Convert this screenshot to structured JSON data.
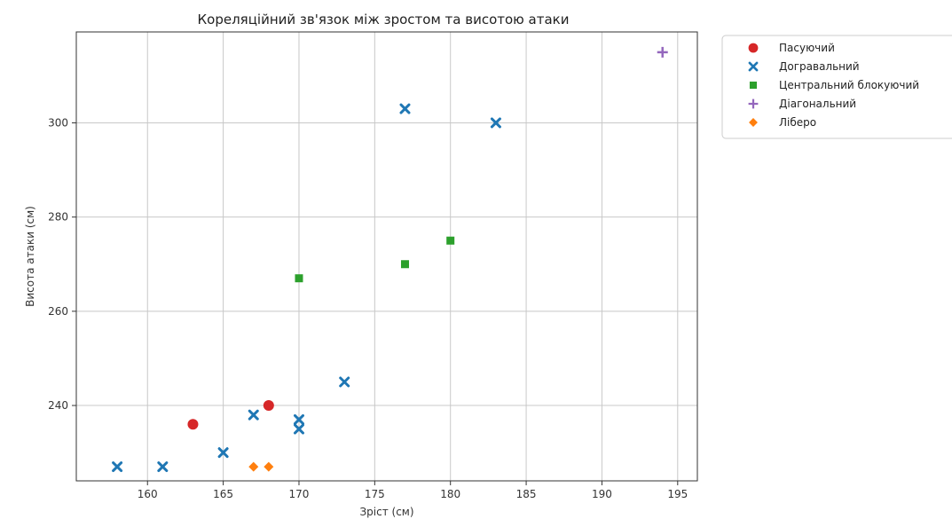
{
  "chart_data": {
    "type": "scatter",
    "title": "Кореляційний зв'язок між зростом та висотою атаки",
    "xlabel": "Зріст (см)",
    "ylabel": "Висота атаки (см)",
    "xlim": [
      155.3,
      196.3
    ],
    "ylim": [
      224,
      319.3
    ],
    "xticks": [
      160,
      165,
      170,
      175,
      180,
      185,
      190,
      195
    ],
    "yticks": [
      240,
      260,
      280,
      300
    ],
    "grid": true,
    "legend_placement": "outside-right-top",
    "series": [
      {
        "name": "Пасуючий",
        "color": "#d62728",
        "marker": "circle",
        "points": [
          [
            163,
            236
          ],
          [
            168,
            240
          ]
        ]
      },
      {
        "name": "Догравальний",
        "color": "#1f77b4",
        "marker": "x",
        "points": [
          [
            158,
            227
          ],
          [
            161,
            227
          ],
          [
            165,
            230
          ],
          [
            167,
            238
          ],
          [
            170,
            237
          ],
          [
            170,
            235
          ],
          [
            173,
            245
          ],
          [
            177,
            303
          ],
          [
            183,
            300
          ]
        ]
      },
      {
        "name": "Центральний блокуючий",
        "color": "#2ca02c",
        "marker": "square",
        "points": [
          [
            170,
            267
          ],
          [
            177,
            270
          ],
          [
            180,
            275
          ]
        ]
      },
      {
        "name": "Діагональний",
        "color": "#9467bd",
        "marker": "plus",
        "points": [
          [
            194,
            315
          ]
        ]
      },
      {
        "name": "Ліберо",
        "color": "#ff7f0e",
        "marker": "diamond",
        "points": [
          [
            167,
            227
          ],
          [
            168,
            227
          ]
        ]
      }
    ]
  }
}
